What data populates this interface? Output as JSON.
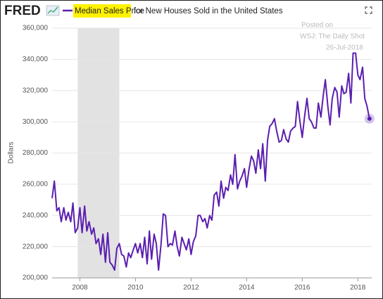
{
  "logo": "FRED",
  "chart_data": {
    "type": "line",
    "title_rest": "for New Houses Sold in the United States",
    "ylabel": "Dollars",
    "annotations": [
      "Posted on",
      "WSJ: The Daily Shot",
      "26-Jul-2018"
    ],
    "shade": [
      2007.92,
      2009.42
    ],
    "xlim": [
      2007,
      2018.5
    ],
    "xticks": [
      2008,
      2010,
      2012,
      2014,
      2016,
      2018
    ],
    "ylim": [
      200000,
      360000
    ],
    "yticks": [
      {
        "value": 200000,
        "label": "200,000"
      },
      {
        "value": 220000,
        "label": "220,000"
      },
      {
        "value": 240000,
        "label": "240,000"
      },
      {
        "value": 260000,
        "label": "260,000"
      },
      {
        "value": 280000,
        "label": "280,000"
      },
      {
        "value": 300000,
        "label": "300,000"
      },
      {
        "value": 320000,
        "label": "320,000"
      },
      {
        "value": 340000,
        "label": "340,000"
      },
      {
        "value": 360000,
        "label": "360,000"
      }
    ],
    "grid": true,
    "x": [
      2007,
      2007.08,
      2007.17,
      2007.25,
      2007.33,
      2007.42,
      2007.5,
      2007.58,
      2007.67,
      2007.75,
      2007.83,
      2007.92,
      2008,
      2008.08,
      2008.17,
      2008.25,
      2008.33,
      2008.42,
      2008.5,
      2008.58,
      2008.67,
      2008.75,
      2008.83,
      2008.92,
      2009,
      2009.08,
      2009.17,
      2009.25,
      2009.33,
      2009.42,
      2009.5,
      2009.58,
      2009.67,
      2009.75,
      2009.83,
      2009.92,
      2010,
      2010.08,
      2010.17,
      2010.25,
      2010.33,
      2010.42,
      2010.5,
      2010.58,
      2010.67,
      2010.75,
      2010.83,
      2010.92,
      2011,
      2011.08,
      2011.17,
      2011.25,
      2011.33,
      2011.42,
      2011.5,
      2011.58,
      2011.67,
      2011.75,
      2011.83,
      2011.92,
      2012,
      2012.08,
      2012.17,
      2012.25,
      2012.33,
      2012.42,
      2012.5,
      2012.58,
      2012.67,
      2012.75,
      2012.83,
      2012.92,
      2013,
      2013.08,
      2013.17,
      2013.25,
      2013.33,
      2013.42,
      2013.5,
      2013.58,
      2013.67,
      2013.75,
      2013.83,
      2013.92,
      2014,
      2014.08,
      2014.17,
      2014.25,
      2014.33,
      2014.42,
      2014.5,
      2014.58,
      2014.67,
      2014.75,
      2014.83,
      2014.92,
      2015,
      2015.08,
      2015.17,
      2015.25,
      2015.33,
      2015.42,
      2015.5,
      2015.58,
      2015.67,
      2015.75,
      2015.83,
      2015.92,
      2016,
      2016.08,
      2016.17,
      2016.25,
      2016.33,
      2016.42,
      2016.5,
      2016.58,
      2016.67,
      2016.75,
      2016.83,
      2016.92,
      2017,
      2017.08,
      2017.17,
      2017.25,
      2017.33,
      2017.42,
      2017.5,
      2017.58,
      2017.67,
      2017.75,
      2017.83,
      2017.92,
      2018,
      2018.08,
      2018.17,
      2018.25,
      2018.33,
      2018.42
    ],
    "series": [
      {
        "name": "Median Sales Price",
        "color": "#5b1fb0",
        "values": [
          251000,
          262000,
          243000,
          245000,
          236000,
          245000,
          237000,
          242000,
          236000,
          248000,
          229000,
          232000,
          245000,
          229000,
          246000,
          230000,
          236000,
          228000,
          232000,
          222000,
          225000,
          215000,
          228000,
          210000,
          229000,
          210000,
          208000,
          205000,
          219000,
          222000,
          215000,
          214000,
          207000,
          216000,
          213000,
          218000,
          222000,
          216000,
          222000,
          213000,
          226000,
          209000,
          230000,
          212000,
          228000,
          222000,
          205000,
          222000,
          241000,
          240000,
          220000,
          222000,
          221000,
          230000,
          220000,
          214000,
          226000,
          222000,
          218000,
          225000,
          215000,
          223000,
          227000,
          240000,
          240000,
          236000,
          238000,
          232000,
          240000,
          237000,
          253000,
          255000,
          246000,
          262000,
          251000,
          258000,
          256000,
          266000,
          260000,
          279000,
          257000,
          262000,
          265000,
          270000,
          258000,
          269000,
          278000,
          275000,
          267000,
          282000,
          270000,
          286000,
          262000,
          288000,
          297000,
          299000,
          302000,
          294000,
          287000,
          288000,
          295000,
          289000,
          287000,
          294000,
          296000,
          297000,
          313000,
          300000,
          290000,
          303000,
          315000,
          302000,
          300000,
          296000,
          296000,
          312000,
          303000,
          316000,
          327000,
          310000,
          298000,
          315000,
          322000,
          319000,
          303000,
          323000,
          318000,
          319000,
          331000,
          312000,
          344000,
          344000,
          330000,
          327000,
          335000,
          315000,
          310000,
          302000
        ]
      }
    ]
  }
}
